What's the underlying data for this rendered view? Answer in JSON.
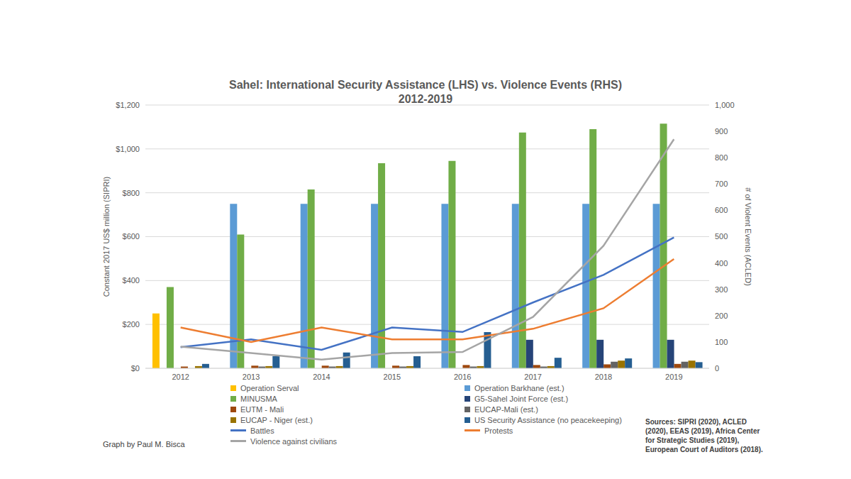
{
  "chart_data": {
    "type": "bar",
    "title": "Sahel: International Security Assistance (LHS) vs. Violence Events (RHS)",
    "subtitle": "2012-2019",
    "categories": [
      "2012",
      "2013",
      "2014",
      "2015",
      "2016",
      "2017",
      "2018",
      "2019"
    ],
    "y_label": "Constant 2017 US$ million (SIPRI)",
    "y2_label": "# of Violent Events (ACLED)",
    "ylim": [
      0,
      1200
    ],
    "yticks": [
      {
        "value": 0,
        "label": "$0"
      },
      {
        "value": 200,
        "label": "$200"
      },
      {
        "value": 400,
        "label": "$400"
      },
      {
        "value": 600,
        "label": "$600"
      },
      {
        "value": 800,
        "label": "$800"
      },
      {
        "value": 1000,
        "label": "$1,000"
      },
      {
        "value": 1200,
        "label": "$1,200"
      }
    ],
    "y2lim": [
      0,
      1000
    ],
    "y2ticks": [
      0,
      100,
      200,
      300,
      400,
      500,
      600,
      700,
      800,
      900,
      {
        "value": 1000,
        "label": "1,000"
      }
    ],
    "grid": true,
    "legend": "bottom",
    "series": [
      {
        "name": "Operation Serval",
        "type": "bar",
        "color": "#ffc000",
        "values": [
          250,
          null,
          null,
          null,
          null,
          null,
          null,
          null
        ]
      },
      {
        "name": "Operation Barkhane (est.)",
        "type": "bar",
        "color": "#5b9bd5",
        "values": [
          null,
          750,
          750,
          750,
          750,
          750,
          750,
          750
        ]
      },
      {
        "name": "MINUSMA",
        "type": "bar",
        "color": "#70ad47",
        "values": [
          370,
          610,
          815,
          935,
          945,
          1075,
          1090,
          1115
        ]
      },
      {
        "name": "G5-Sahel Joint Force (est.)",
        "type": "bar",
        "color": "#264478",
        "values": [
          null,
          null,
          null,
          null,
          null,
          130,
          130,
          130
        ]
      },
      {
        "name": "EUTM - Mali",
        "type": "bar",
        "color": "#9e480e",
        "values": [
          8,
          12,
          12,
          12,
          15,
          15,
          18,
          20
        ]
      },
      {
        "name": "EUCAP-Mali (est.)",
        "type": "bar",
        "color": "#636363",
        "values": [
          null,
          8,
          8,
          8,
          8,
          8,
          30,
          30
        ]
      },
      {
        "name": "EUCAP - Niger (est.)",
        "type": "bar",
        "color": "#997300",
        "values": [
          10,
          10,
          10,
          10,
          10,
          10,
          35,
          35
        ]
      },
      {
        "name": "US Security Assistance (no peacekeeping)",
        "type": "bar",
        "color": "#255e91",
        "values": [
          20,
          55,
          72,
          55,
          165,
          48,
          45,
          28
        ]
      },
      {
        "name": "Battles",
        "type": "line",
        "axis": "y2",
        "color": "#4472c4",
        "values": [
          80,
          110,
          70,
          155,
          138,
          250,
          355,
          497
        ]
      },
      {
        "name": "Protests",
        "type": "line",
        "axis": "y2",
        "color": "#ed7d31",
        "values": [
          155,
          100,
          155,
          110,
          110,
          150,
          228,
          415
        ]
      },
      {
        "name": "Violence against civilians",
        "type": "line",
        "axis": "y2",
        "color": "#a5a5a5",
        "values": [
          82,
          58,
          33,
          58,
          62,
          195,
          465,
          870
        ]
      }
    ],
    "annotations": [
      "Sources: SIPRI (2020), ACLED (2020), EEAS (2019), Africa Center for Strategic Studies (2019), European Court of Auditors (2018).",
      "Graph by Paul M. Bisca"
    ]
  }
}
